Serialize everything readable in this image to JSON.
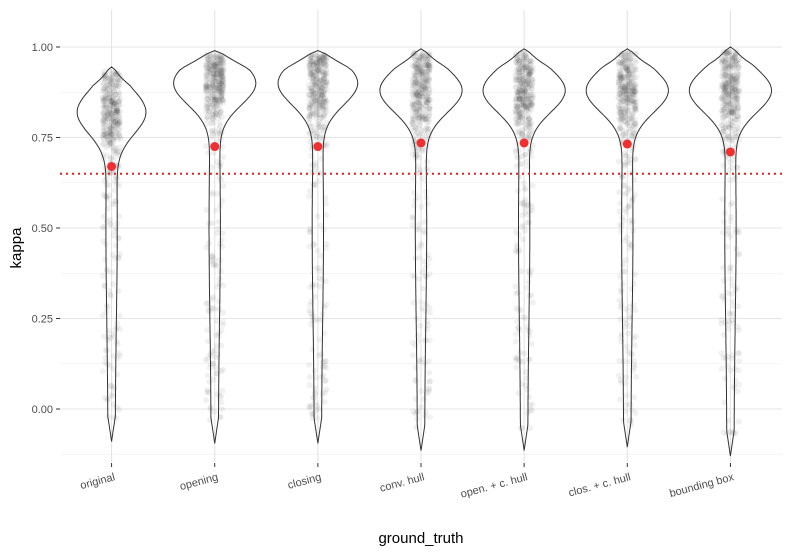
{
  "chart_data": {
    "type": "violin",
    "xlabel": "ground_truth",
    "ylabel": "kappa",
    "ylim": [
      -0.16,
      1.05
    ],
    "yticks": [
      0.0,
      0.25,
      0.5,
      0.75,
      1.0
    ],
    "ytick_labels": [
      "0.00",
      "0.25",
      "0.50",
      "0.75",
      "1.00"
    ],
    "categories": [
      "original",
      "opening",
      "closing",
      "conv. hull",
      "open. + c. hull",
      "clos. + c. hull",
      "bounding box"
    ],
    "means": [
      0.67,
      0.725,
      0.725,
      0.735,
      0.735,
      0.732,
      0.71
    ],
    "mins": [
      -0.09,
      -0.095,
      -0.095,
      -0.115,
      -0.115,
      -0.105,
      -0.13
    ],
    "maxs": [
      0.945,
      0.99,
      0.99,
      0.995,
      0.995,
      0.995,
      1.0
    ],
    "density_peak": [
      0.82,
      0.9,
      0.9,
      0.88,
      0.88,
      0.88,
      0.88
    ],
    "density_peak_width": [
      0.82,
      0.98,
      0.95,
      0.98,
      0.98,
      0.98,
      0.98
    ],
    "reference_line": 0.65,
    "grid": true,
    "colors": {
      "mean_point": "#f03030",
      "reference_line": "#e02020",
      "points": "#333333",
      "violin_outline": "#333333",
      "grid": "#ebebeb"
    }
  }
}
